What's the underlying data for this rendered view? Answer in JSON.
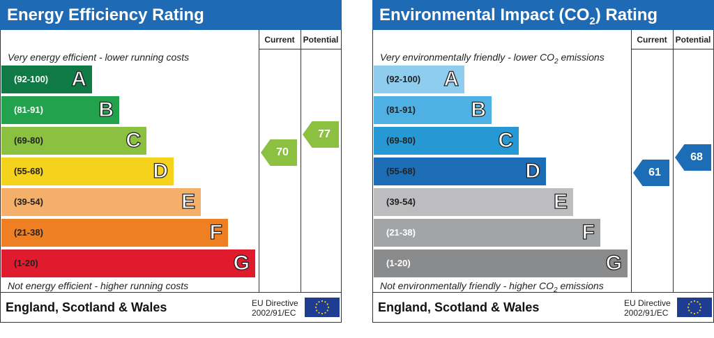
{
  "colors": {
    "header_bg": "#1f6ab4",
    "border": "#333333"
  },
  "energy_efficiency": {
    "title": "Energy Efficiency Rating",
    "col_current": "Current",
    "col_potential": "Potential",
    "top_caption": "Very energy efficient - lower running costs",
    "bottom_caption": "Not energy efficient - higher running costs",
    "bands": [
      {
        "range": "(92-100)",
        "letter": "A",
        "color": "#0f7a45",
        "text_color": "#ffffff"
      },
      {
        "range": "(81-91)",
        "letter": "B",
        "color": "#23a24d",
        "text_color": "#ffffff"
      },
      {
        "range": "(69-80)",
        "letter": "C",
        "color": "#8cc040",
        "text_color": "#222222"
      },
      {
        "range": "(55-68)",
        "letter": "D",
        "color": "#f5d21c",
        "text_color": "#222222"
      },
      {
        "range": "(39-54)",
        "letter": "E",
        "color": "#f4b06b",
        "text_color": "#222222"
      },
      {
        "range": "(21-38)",
        "letter": "F",
        "color": "#ee7f22",
        "text_color": "#222222"
      },
      {
        "range": "(1-20)",
        "letter": "G",
        "color": "#e01b2e",
        "text_color": "#222222"
      }
    ],
    "current": {
      "value": "70",
      "color": "#8cc040"
    },
    "potential": {
      "value": "77",
      "color": "#8cc040"
    },
    "footer_region": "England, Scotland & Wales",
    "eu_line1": "EU Directive",
    "eu_line2": "2002/91/EC"
  },
  "environmental_impact": {
    "title_main": "Environmental Impact (CO",
    "title_sub": "2",
    "title_end": ") Rating",
    "col_current": "Current",
    "col_potential": "Potential",
    "top_caption_main": "Very environmentally friendly - lower CO",
    "top_caption_sub": "2",
    "top_caption_end": " emissions",
    "bottom_caption_main": "Not environmentally friendly - higher CO",
    "bottom_caption_sub": "2",
    "bottom_caption_end": " emissions",
    "bands": [
      {
        "range": "(92-100)",
        "letter": "A",
        "color": "#8ecdee",
        "text_color": "#222222"
      },
      {
        "range": "(81-91)",
        "letter": "B",
        "color": "#4fb0e3",
        "text_color": "#222222"
      },
      {
        "range": "(69-80)",
        "letter": "C",
        "color": "#2698d4",
        "text_color": "#222222"
      },
      {
        "range": "(55-68)",
        "letter": "D",
        "color": "#1c6db6",
        "text_color": "#222222"
      },
      {
        "range": "(39-54)",
        "letter": "E",
        "color": "#bdbdbf",
        "text_color": "#222222"
      },
      {
        "range": "(21-38)",
        "letter": "F",
        "color": "#a3a4a6",
        "text_color": "#ffffff"
      },
      {
        "range": "(1-20)",
        "letter": "G",
        "color": "#8a8b8d",
        "text_color": "#ffffff"
      }
    ],
    "current": {
      "value": "61",
      "color": "#1c6db6"
    },
    "potential": {
      "value": "68",
      "color": "#1c6db6"
    },
    "footer_region": "England, Scotland & Wales",
    "eu_line1": "EU Directive",
    "eu_line2": "2002/91/EC"
  },
  "chart_data": [
    {
      "type": "bar",
      "title": "Energy Efficiency Rating",
      "categories": [
        "A",
        "B",
        "C",
        "D",
        "E",
        "F",
        "G"
      ],
      "ranges": [
        "(92-100)",
        "(81-91)",
        "(69-80)",
        "(55-68)",
        "(39-54)",
        "(21-38)",
        "(1-20)"
      ],
      "current": 70,
      "potential": 77
    },
    {
      "type": "bar",
      "title": "Environmental Impact (CO2) Rating",
      "categories": [
        "A",
        "B",
        "C",
        "D",
        "E",
        "F",
        "G"
      ],
      "ranges": [
        "(92-100)",
        "(81-91)",
        "(69-80)",
        "(55-68)",
        "(39-54)",
        "(21-38)",
        "(1-20)"
      ],
      "current": 61,
      "potential": 68
    }
  ]
}
